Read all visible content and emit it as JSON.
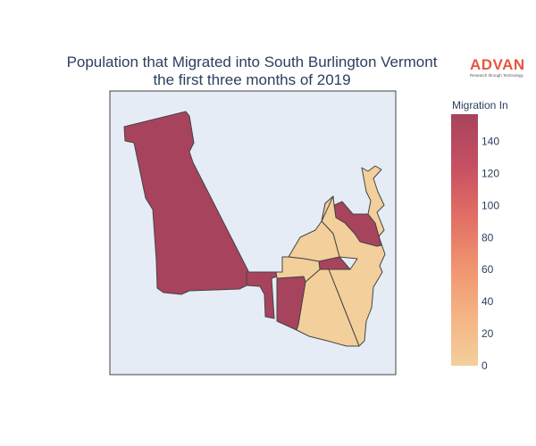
{
  "title": {
    "line1": "Population that Migrated into South Burlington Vermont",
    "line2": "the first three months of 2019"
  },
  "logo": {
    "name": "ADVAN",
    "tagline": "Research through Technology",
    "color": "#e8553f"
  },
  "colorbar": {
    "title": "Migration In",
    "min": 0,
    "max": 157,
    "ticks": [
      0,
      20,
      40,
      60,
      80,
      100,
      120,
      140
    ],
    "colors": [
      "#f3cf9c",
      "#f5b383",
      "#ef936f",
      "#e06d65",
      "#c54f62",
      "#a8435d"
    ]
  },
  "map": {
    "background": "#e5ecf6",
    "border_color": "#444444",
    "regions": [
      {
        "name": "region-northwest",
        "value": 157
      },
      {
        "name": "region-southwest",
        "value": 157
      },
      {
        "name": "region-center-lower",
        "value": 157
      },
      {
        "name": "region-center-strip",
        "value": 157
      },
      {
        "name": "region-northeast-block",
        "value": 157
      },
      {
        "name": "region-east-shore",
        "value": 0
      },
      {
        "name": "region-north-central",
        "value": 0
      },
      {
        "name": "region-south-large",
        "value": 0
      },
      {
        "name": "region-center-small",
        "value": 0
      }
    ]
  }
}
